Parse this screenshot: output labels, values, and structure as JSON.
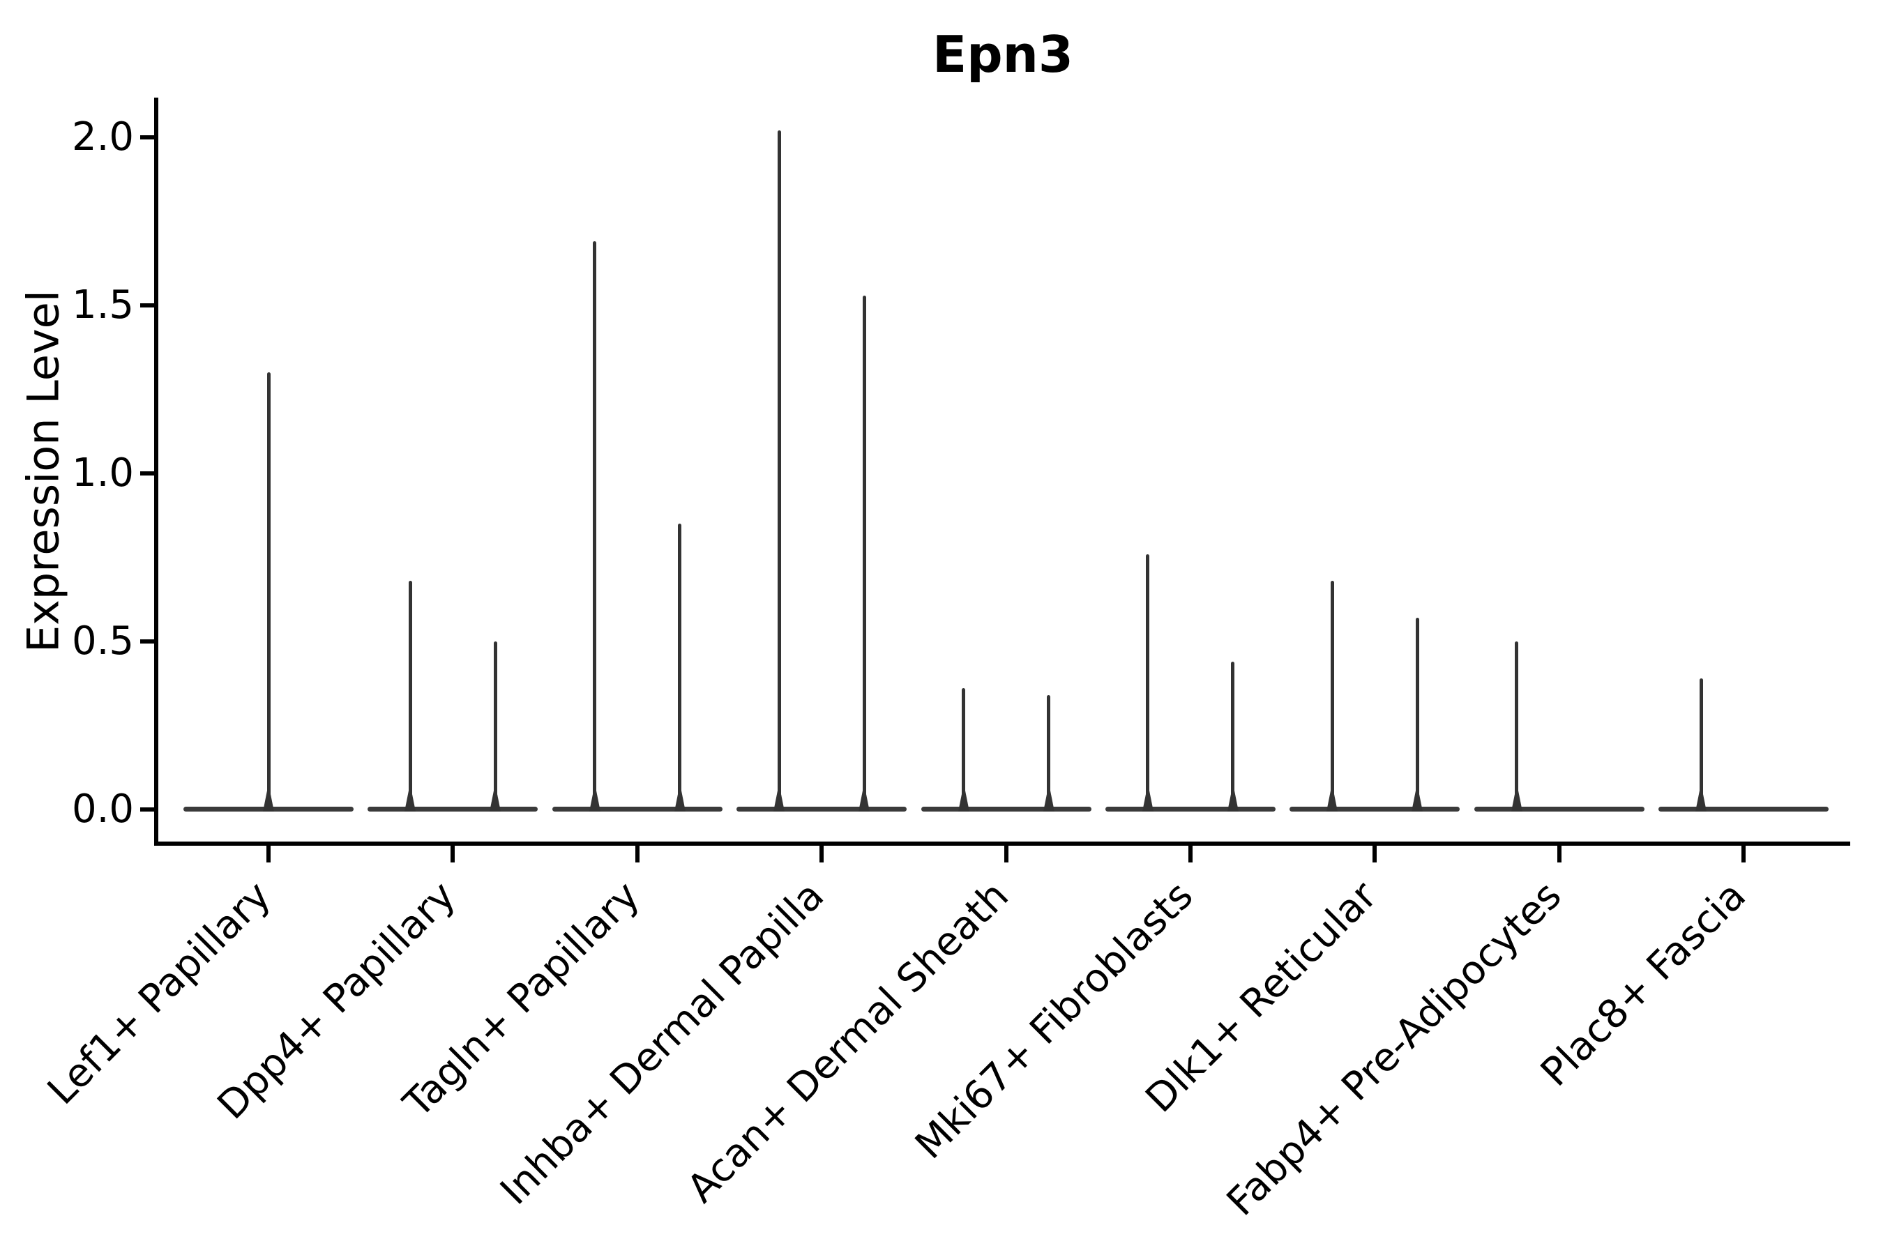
{
  "chart": {
    "title": "Epn3",
    "ylabel": "Expression Level"
  },
  "colors": {
    "violin": "#333333",
    "violin_body": "#3a3a3a",
    "axis": "#000000",
    "background": "#ffffff"
  },
  "chart_data": {
    "type": "violin",
    "title": "Epn3",
    "xlabel": "",
    "ylabel": "Expression Level",
    "yticks": [
      0.0,
      0.5,
      1.0,
      1.5,
      2.0
    ],
    "ylim": [
      -0.1,
      2.11
    ],
    "grid": false,
    "legend": false,
    "categories": [
      "Lef1+ Papillary",
      "Dpp4+ Papillary",
      "Tagln+ Papillary",
      "Inhba+ Dermal Papilla",
      "Acan+ Dermal Sheath",
      "Mki67+ Fibroblasts",
      "Dlk1+ Reticular",
      "Fabp4+ Pre-Adipocytes",
      "Plac8+ Fascia"
    ],
    "violins": [
      {
        "category": "Lef1+ Papillary",
        "body_value": 0.0,
        "spikes": [
          {
            "position": "center",
            "max_value": 1.3
          }
        ]
      },
      {
        "category": "Dpp4+ Papillary",
        "body_value": 0.0,
        "spikes": [
          {
            "position": "left",
            "max_value": 0.68
          },
          {
            "position": "right",
            "max_value": 0.5
          }
        ]
      },
      {
        "category": "Tagln+ Papillary",
        "body_value": 0.0,
        "spikes": [
          {
            "position": "left",
            "max_value": 1.69
          },
          {
            "position": "right",
            "max_value": 0.85
          }
        ]
      },
      {
        "category": "Inhba+ Dermal Papilla",
        "body_value": 0.0,
        "spikes": [
          {
            "position": "left",
            "max_value": 2.02
          },
          {
            "position": "right",
            "max_value": 1.53
          }
        ]
      },
      {
        "category": "Acan+ Dermal Sheath",
        "body_value": 0.0,
        "spikes": [
          {
            "position": "left",
            "max_value": 0.36
          },
          {
            "position": "right",
            "max_value": 0.34
          }
        ]
      },
      {
        "category": "Mki67+ Fibroblasts",
        "body_value": 0.0,
        "spikes": [
          {
            "position": "left",
            "max_value": 0.76
          },
          {
            "position": "right",
            "max_value": 0.44
          }
        ]
      },
      {
        "category": "Dlk1+ Reticular",
        "body_value": 0.0,
        "spikes": [
          {
            "position": "left",
            "max_value": 0.68
          },
          {
            "position": "right",
            "max_value": 0.57
          }
        ]
      },
      {
        "category": "Fabp4+ Pre-Adipocytes",
        "body_value": 0.0,
        "spikes": [
          {
            "position": "left",
            "max_value": 0.5
          }
        ]
      },
      {
        "category": "Plac8+ Fascia",
        "body_value": 0.0,
        "spikes": [
          {
            "position": "left",
            "max_value": 0.39
          }
        ]
      }
    ]
  }
}
